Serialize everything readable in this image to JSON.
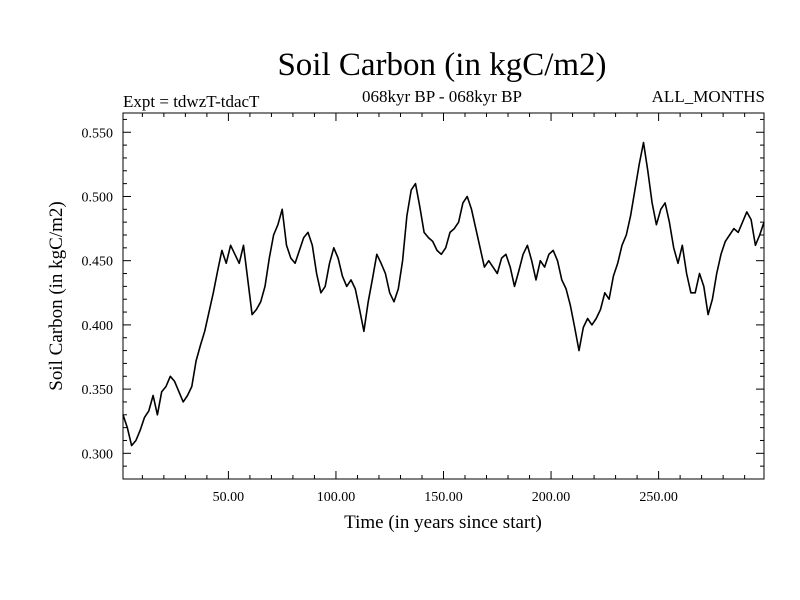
{
  "header": {
    "title": "Soil Carbon (in kgC/m2)",
    "expt": "Expt = tdwzT-tdacT",
    "period": "068kyr BP - 068kyr BP",
    "months": "ALL_MONTHS"
  },
  "chart_data": {
    "type": "line",
    "title": "Soil Carbon (in kgC/m2)",
    "xlabel": "Time (in years since start)",
    "ylabel": "Soil Carbon (in kgC/m2)",
    "xlim": [
      1,
      299
    ],
    "ylim": [
      0.28,
      0.565
    ],
    "x_ticks": [
      50,
      100,
      150,
      200,
      250
    ],
    "x_tick_labels": [
      "50.00",
      "100.00",
      "150.00",
      "200.00",
      "250.00"
    ],
    "y_ticks": [
      0.3,
      0.35,
      0.4,
      0.45,
      0.5,
      0.55
    ],
    "y_tick_labels": [
      "0.300",
      "0.350",
      "0.400",
      "0.450",
      "0.500",
      "0.550"
    ],
    "grid": false,
    "series": [
      {
        "color": "#000000",
        "x": [
          1,
          3,
          5,
          7,
          9,
          11,
          13,
          15,
          17,
          19,
          21,
          23,
          25,
          27,
          29,
          31,
          33,
          35,
          37,
          39,
          41,
          43,
          45,
          47,
          49,
          51,
          53,
          55,
          57,
          59,
          61,
          63,
          65,
          67,
          69,
          71,
          73,
          75,
          77,
          79,
          81,
          83,
          85,
          87,
          89,
          91,
          93,
          95,
          97,
          99,
          101,
          103,
          105,
          107,
          109,
          111,
          113,
          115,
          117,
          119,
          121,
          123,
          125,
          127,
          129,
          131,
          133,
          135,
          137,
          139,
          141,
          143,
          145,
          147,
          149,
          151,
          153,
          155,
          157,
          159,
          161,
          163,
          165,
          167,
          169,
          171,
          173,
          175,
          177,
          179,
          181,
          183,
          185,
          187,
          189,
          191,
          193,
          195,
          197,
          199,
          201,
          203,
          205,
          207,
          209,
          211,
          213,
          215,
          217,
          219,
          221,
          223,
          225,
          227,
          229,
          231,
          233,
          235,
          237,
          239,
          241,
          243,
          245,
          247,
          249,
          251,
          253,
          255,
          257,
          259,
          261,
          263,
          265,
          267,
          269,
          271,
          273,
          275,
          277,
          279,
          281,
          283,
          285,
          287,
          289,
          291,
          293,
          295,
          297,
          299
        ],
        "y": [
          0.33,
          0.32,
          0.306,
          0.31,
          0.318,
          0.328,
          0.333,
          0.345,
          0.33,
          0.348,
          0.352,
          0.36,
          0.356,
          0.348,
          0.34,
          0.345,
          0.352,
          0.372,
          0.384,
          0.395,
          0.41,
          0.425,
          0.442,
          0.458,
          0.448,
          0.462,
          0.455,
          0.448,
          0.462,
          0.435,
          0.408,
          0.412,
          0.418,
          0.43,
          0.452,
          0.47,
          0.478,
          0.49,
          0.462,
          0.452,
          0.448,
          0.458,
          0.468,
          0.472,
          0.462,
          0.44,
          0.425,
          0.43,
          0.448,
          0.46,
          0.452,
          0.438,
          0.43,
          0.435,
          0.428,
          0.412,
          0.395,
          0.418,
          0.436,
          0.455,
          0.448,
          0.44,
          0.425,
          0.418,
          0.428,
          0.45,
          0.485,
          0.505,
          0.51,
          0.492,
          0.472,
          0.468,
          0.465,
          0.458,
          0.455,
          0.46,
          0.472,
          0.475,
          0.48,
          0.495,
          0.5,
          0.49,
          0.475,
          0.46,
          0.445,
          0.45,
          0.445,
          0.44,
          0.452,
          0.455,
          0.445,
          0.43,
          0.442,
          0.455,
          0.462,
          0.45,
          0.435,
          0.45,
          0.445,
          0.455,
          0.458,
          0.45,
          0.435,
          0.428,
          0.415,
          0.398,
          0.38,
          0.398,
          0.405,
          0.4,
          0.405,
          0.412,
          0.425,
          0.42,
          0.438,
          0.448,
          0.462,
          0.47,
          0.485,
          0.505,
          0.525,
          0.542,
          0.52,
          0.495,
          0.478,
          0.49,
          0.495,
          0.48,
          0.46,
          0.448,
          0.462,
          0.44,
          0.425,
          0.425,
          0.44,
          0.43,
          0.408,
          0.42,
          0.44,
          0.455,
          0.465,
          0.47,
          0.475,
          0.472,
          0.48,
          0.488,
          0.482,
          0.462,
          0.47,
          0.48
        ]
      }
    ]
  }
}
